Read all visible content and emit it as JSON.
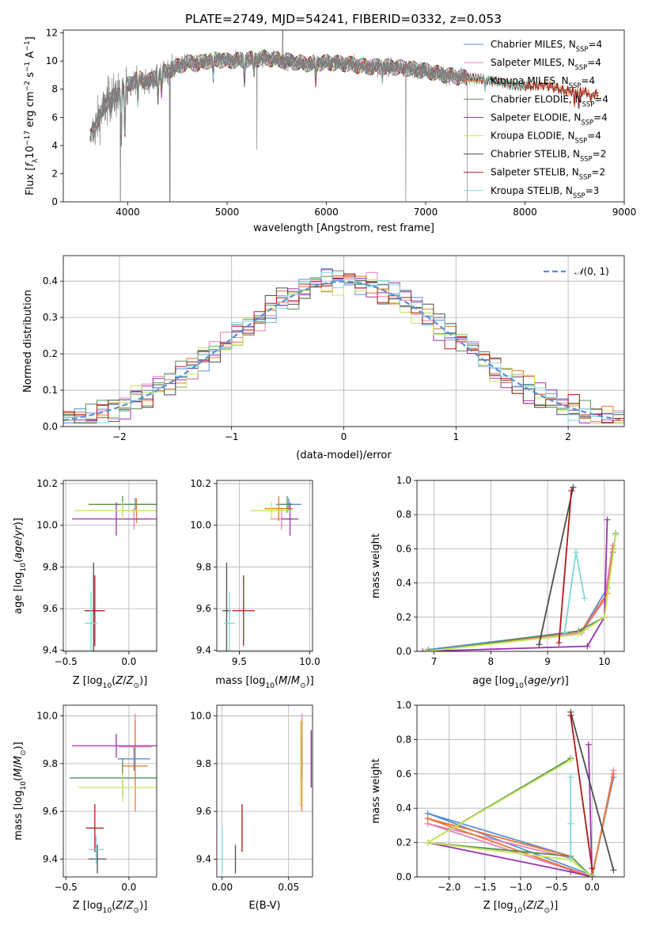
{
  "figure_title": "PLATE=2749, MJD=54241, FIBERID=0332, z=0.053",
  "palette": {
    "Chabrier MILES": "#5b8fd6",
    "Salpeter MILES": "#e97fb8",
    "Kroupa MILES": "#e8772e",
    "Chabrier ELODIE": "#5a8f5a",
    "Salpeter ELODIE": "#9b30b0",
    "Kroupa ELODIE": "#c7e85a",
    "Chabrier STELIB": "#4d4d4d",
    "Salpeter STELIB": "#b01818",
    "Kroupa STELIB": "#7ed8d8",
    "data": "#7f7f7f",
    "normal": "#5b8fd6",
    "grid": "#b0b0b0"
  },
  "chart_data": [
    {
      "id": "spectrum",
      "type": "line",
      "xlabel": "wavelength [Angstrom, rest frame]",
      "ylabel": "Flux [f_λ10^-17 erg cm^-2 s^-1 A^-1]",
      "xlim": [
        3350,
        9000
      ],
      "ylim": [
        0,
        12.2
      ],
      "xticks": [
        4000,
        5000,
        6000,
        7000,
        8000,
        9000
      ],
      "yticks": [
        0,
        2,
        4,
        6,
        8,
        10,
        12
      ],
      "grid": false,
      "legend_position": "top-right",
      "data_range": [
        3640,
        7420
      ],
      "legend": [
        {
          "name": "Chabrier MILES",
          "nssp": "4"
        },
        {
          "name": "Salpeter MILES",
          "nssp": "4"
        },
        {
          "name": "Kroupa MILES",
          "nssp": "4"
        },
        {
          "name": "Chabrier ELODIE",
          "nssp": "4"
        },
        {
          "name": "Salpeter ELODIE",
          "nssp": "4"
        },
        {
          "name": "Kroupa ELODIE",
          "nssp": "4"
        },
        {
          "name": "Chabrier STELIB",
          "nssp": "2"
        },
        {
          "name": "Salpeter STELIB",
          "nssp": "2"
        },
        {
          "name": "Kroupa STELIB",
          "nssp": "3"
        }
      ],
      "continuum": [
        [
          3620,
          4.5
        ],
        [
          3700,
          5.8
        ],
        [
          3800,
          7.2
        ],
        [
          3900,
          7.6
        ],
        [
          4000,
          8.3
        ],
        [
          4100,
          8.8
        ],
        [
          4200,
          8.5
        ],
        [
          4300,
          8.9
        ],
        [
          4400,
          9.3
        ],
        [
          4500,
          9.6
        ],
        [
          4600,
          9.9
        ],
        [
          4700,
          9.8
        ],
        [
          4800,
          10.0
        ],
        [
          4900,
          10.1
        ],
        [
          5000,
          10.0
        ],
        [
          5200,
          10.1
        ],
        [
          5400,
          10.2
        ],
        [
          5600,
          10.0
        ],
        [
          5800,
          9.8
        ],
        [
          6000,
          9.9
        ],
        [
          6200,
          9.8
        ],
        [
          6400,
          9.6
        ],
        [
          6600,
          9.6
        ],
        [
          6800,
          9.5
        ],
        [
          7000,
          9.3
        ],
        [
          7200,
          9.0
        ],
        [
          7400,
          8.8
        ],
        [
          7600,
          8.7
        ],
        [
          7800,
          8.4
        ],
        [
          8000,
          8.2
        ],
        [
          8200,
          8.3
        ],
        [
          8400,
          7.9
        ],
        [
          8600,
          7.8
        ],
        [
          8740,
          7.6
        ]
      ],
      "absorption_lines": [
        [
          3934,
          4.2
        ],
        [
          3969,
          5.0
        ],
        [
          4101,
          7.0
        ],
        [
          4304,
          7.5
        ],
        [
          4340,
          7.8
        ],
        [
          4861,
          8.8
        ],
        [
          5175,
          8.7
        ],
        [
          5270,
          9.2
        ],
        [
          5892,
          8.6
        ],
        [
          6563,
          8.9
        ],
        [
          7600,
          8.0
        ],
        [
          8498,
          6.8
        ],
        [
          8542,
          6.5
        ],
        [
          8662,
          6.8
        ]
      ],
      "glitches": [
        [
          3925,
          0
        ],
        [
          4420,
          0
        ],
        [
          4425,
          0
        ],
        [
          5300,
          3.7
        ],
        [
          6800,
          0
        ],
        [
          7420,
          0
        ]
      ],
      "model_ends": [
        [
          7420,
          7600
        ],
        [
          7420,
          7600
        ],
        [
          7420,
          8740
        ],
        [
          7420,
          8060
        ],
        [
          7420,
          7600
        ],
        [
          7420,
          7600
        ],
        [
          7420,
          8740
        ],
        [
          7420,
          8740
        ],
        [
          7420,
          8000
        ]
      ]
    },
    {
      "id": "residuals",
      "type": "step",
      "xlabel": "(data-model)/error",
      "ylabel": "Normed distribution",
      "xlim": [
        -2.5,
        2.5
      ],
      "ylim": [
        0,
        0.47
      ],
      "xticks": [
        -2,
        -1,
        0,
        1,
        2
      ],
      "yticks": [
        0.0,
        0.1,
        0.2,
        0.3,
        0.4
      ],
      "grid": true,
      "legend_position": "top-right",
      "legend_label": "N(0,1)",
      "bin_width": 0.1,
      "bin_start": -2.5,
      "gaussian": {
        "mean": 0,
        "sigma": 1
      }
    },
    {
      "id": "Z-age",
      "type": "errorbar",
      "xlabel": "Z [log10(Z/Z⊙)]",
      "ylabel": "age [log10(age/yr)]",
      "xlim": [
        -0.52,
        0.22
      ],
      "ylim": [
        9.395,
        10.215
      ],
      "xticks": [
        -0.5,
        0.0
      ],
      "yticks": [
        9.4,
        9.6,
        9.8,
        10.0,
        10.2
      ],
      "grid": true,
      "points": [
        {
          "series": "Chabrier MILES",
          "x": 0.05,
          "xe": 0.15,
          "y": 10.1,
          "ye": 0.03
        },
        {
          "series": "Salpeter MILES",
          "x": 0.04,
          "xe": 0.12,
          "y": 10.03,
          "ye": 0.05
        },
        {
          "series": "Kroupa MILES",
          "x": 0.06,
          "xe": 0.09,
          "y": 10.07,
          "ye": 0.06
        },
        {
          "series": "Chabrier ELODIE",
          "x": -0.05,
          "xe": 0.27,
          "y": 10.1,
          "ye": 0.04
        },
        {
          "series": "Salpeter ELODIE",
          "x": -0.1,
          "xe": 0.35,
          "y": 10.03,
          "ye": 0.08
        },
        {
          "series": "Kroupa ELODIE",
          "x": -0.05,
          "xe": 0.38,
          "y": 10.07,
          "ye": 0.04
        },
        {
          "series": "Chabrier STELIB",
          "x": -0.28,
          "xe": 0.07,
          "y": 9.59,
          "ye": 0.23
        },
        {
          "series": "Salpeter STELIB",
          "x": -0.27,
          "xe": 0.08,
          "y": 9.59,
          "ye": 0.17
        },
        {
          "series": "Kroupa STELIB",
          "x": -0.3,
          "xe": 0.05,
          "y": 9.53,
          "ye": 0.15
        }
      ]
    },
    {
      "id": "mass-age",
      "type": "errorbar",
      "xlabel": "mass [log10(M/M⊙)]",
      "ylabel": "",
      "xlim": [
        9.34,
        10.02
      ],
      "ylim": [
        9.395,
        10.215
      ],
      "xticks": [
        9.5,
        10.0
      ],
      "yticks": [
        9.4,
        9.6,
        9.8,
        10.0,
        10.2
      ],
      "grid": true,
      "points": [
        {
          "series": "Chabrier MILES",
          "x": 9.85,
          "xe": 0.09,
          "y": 10.1,
          "ye": 0.03
        },
        {
          "series": "Salpeter MILES",
          "x": 9.8,
          "xe": 0.08,
          "y": 10.03,
          "ye": 0.05
        },
        {
          "series": "Kroupa MILES",
          "x": 9.78,
          "xe": 0.1,
          "y": 10.08,
          "ye": 0.06
        },
        {
          "series": "Chabrier ELODIE",
          "x": 9.84,
          "xe": 0.05,
          "y": 10.1,
          "ye": 0.04
        },
        {
          "series": "Salpeter ELODIE",
          "x": 9.86,
          "xe": 0.06,
          "y": 10.03,
          "ye": 0.08
        },
        {
          "series": "Kroupa ELODIE",
          "x": 9.73,
          "xe": 0.15,
          "y": 10.07,
          "ye": 0.04
        },
        {
          "series": "Chabrier STELIB",
          "x": 9.41,
          "xe": 0.03,
          "y": 9.59,
          "ye": 0.23
        },
        {
          "series": "Salpeter STELIB",
          "x": 9.53,
          "xe": 0.08,
          "y": 9.59,
          "ye": 0.17
        },
        {
          "series": "Kroupa STELIB",
          "x": 9.43,
          "xe": 0.04,
          "y": 9.53,
          "ye": 0.15
        }
      ]
    },
    {
      "id": "age-weight",
      "type": "line",
      "xlabel": "age [log10(age/yr)]",
      "ylabel": "mass weight",
      "xlim": [
        6.7,
        10.35
      ],
      "ylim": [
        0,
        1.0
      ],
      "xticks": [
        7,
        8,
        9,
        10
      ],
      "yticks": [
        0.0,
        0.2,
        0.4,
        0.6,
        0.8,
        1.0
      ],
      "grid": true,
      "series": [
        {
          "name": "Chabrier MILES",
          "x": [
            6.9,
            9.6,
            10.05,
            10.15
          ],
          "y": [
            0.01,
            0.12,
            0.37,
            0.58
          ]
        },
        {
          "name": "Salpeter MILES",
          "x": [
            6.9,
            9.6,
            10.0,
            10.15
          ],
          "y": [
            0.0,
            0.11,
            0.3,
            0.62
          ]
        },
        {
          "name": "Kroupa MILES",
          "x": [
            6.9,
            9.6,
            10.05,
            10.15
          ],
          "y": [
            0.0,
            0.12,
            0.34,
            0.6
          ]
        },
        {
          "name": "Chabrier ELODIE",
          "x": [
            6.85,
            9.55,
            10.0,
            10.2
          ],
          "y": [
            0.0,
            0.12,
            0.2,
            0.69
          ]
        },
        {
          "name": "Salpeter ELODIE",
          "x": [
            6.8,
            9.7,
            10.0,
            10.05
          ],
          "y": [
            0.0,
            0.03,
            0.2,
            0.77
          ]
        },
        {
          "name": "Kroupa ELODIE",
          "x": [
            6.85,
            9.55,
            10.0,
            10.2
          ],
          "y": [
            0.0,
            0.1,
            0.2,
            0.68
          ]
        },
        {
          "name": "Chabrier STELIB",
          "x": [
            8.85,
            9.45
          ],
          "y": [
            0.04,
            0.96
          ]
        },
        {
          "name": "Salpeter STELIB",
          "x": [
            9.2,
            9.42
          ],
          "y": [
            0.05,
            0.94
          ]
        },
        {
          "name": "Kroupa STELIB",
          "x": [
            9.3,
            9.5,
            9.65
          ],
          "y": [
            0.11,
            0.58,
            0.31
          ]
        }
      ]
    },
    {
      "id": "Z-mass",
      "type": "errorbar",
      "xlabel": "Z [log10(Z/Z⊙)]",
      "ylabel": "mass [log10(M/M⊙)]",
      "xlim": [
        -0.52,
        0.22
      ],
      "ylim": [
        9.325,
        10.045
      ],
      "xticks": [
        -0.5,
        0.0
      ],
      "yticks": [
        9.4,
        9.6,
        9.8,
        10.0
      ],
      "grid": true,
      "points": [
        {
          "series": "Chabrier MILES",
          "x": 0.04,
          "xe": 0.13,
          "y": 9.82,
          "ye": 0.05
        },
        {
          "series": "Salpeter MILES",
          "x": 0.05,
          "xe": 0.13,
          "y": 9.87,
          "ye": 0.14
        },
        {
          "series": "Kroupa MILES",
          "x": 0.05,
          "xe": 0.1,
          "y": 9.79,
          "ye": 0.19
        },
        {
          "series": "Chabrier ELODIE",
          "x": -0.05,
          "xe": 0.42,
          "y": 9.74,
          "ye": 0.08
        },
        {
          "series": "Salpeter ELODIE",
          "x": -0.1,
          "xe": 0.35,
          "y": 9.875,
          "ye": 0.05
        },
        {
          "series": "Kroupa ELODIE",
          "x": -0.05,
          "xe": 0.35,
          "y": 9.7,
          "ye": 0.06
        },
        {
          "series": "Chabrier STELIB",
          "x": -0.25,
          "xe": 0.07,
          "y": 9.4,
          "ye": 0.06
        },
        {
          "series": "Salpeter STELIB",
          "x": -0.27,
          "xe": 0.07,
          "y": 9.53,
          "ye": 0.1
        },
        {
          "series": "Kroupa STELIB",
          "x": -0.26,
          "xe": 0.06,
          "y": 9.44,
          "ye": 0.06
        }
      ]
    },
    {
      "id": "ebv-mass",
      "type": "errorbar",
      "xlabel": "E(B-V)",
      "ylabel": "",
      "xlim": [
        -0.004,
        0.068
      ],
      "ylim": [
        9.325,
        10.045
      ],
      "xticks": [
        0.0,
        0.05
      ],
      "yticks": [
        9.4,
        9.6,
        9.8,
        10.0
      ],
      "grid": true,
      "points": [
        {
          "series": "Chabrier MILES",
          "x": 0.06,
          "xe": 0,
          "y": 9.82,
          "ye": 0.08
        },
        {
          "series": "Salpeter MILES",
          "x": 0.06,
          "xe": 0,
          "y": 9.87,
          "ye": 0.14
        },
        {
          "series": "Kroupa MILES",
          "x": 0.06,
          "xe": 0,
          "y": 9.79,
          "ye": 0.19
        },
        {
          "series": "Chabrier ELODIE",
          "x": 0.067,
          "xe": 0,
          "y": 9.82,
          "ye": 0.12
        },
        {
          "series": "Salpeter ELODIE",
          "x": 0.067,
          "xe": 0,
          "y": 9.82,
          "ye": 0.12
        },
        {
          "series": "Kroupa ELODIE",
          "x": 0.059,
          "xe": 0,
          "y": 9.8,
          "ye": 0.18
        },
        {
          "series": "Chabrier STELIB",
          "x": 0.01,
          "xe": 0,
          "y": 9.4,
          "ye": 0.06
        },
        {
          "series": "Salpeter STELIB",
          "x": 0.015,
          "xe": 0,
          "y": 9.53,
          "ye": 0.1
        },
        {
          "series": "Kroupa STELIB",
          "x": 0.0,
          "xe": 0,
          "y": 9.44,
          "ye": 0.1
        }
      ]
    },
    {
      "id": "Z-weight",
      "type": "line",
      "xlabel": "Z [log10(Z/Z⊙)]",
      "ylabel": "mass weight",
      "xlim": [
        -2.45,
        0.45
      ],
      "ylim": [
        0,
        1.0
      ],
      "xticks": [
        -2.0,
        -1.5,
        -1.0,
        -0.5,
        0.0
      ],
      "yticks": [
        0.0,
        0.2,
        0.4,
        0.6,
        0.8,
        1.0
      ],
      "grid": true,
      "series": [
        {
          "name": "Chabrier MILES",
          "x": [
            -0.3,
            -2.3,
            0.0,
            0.3
          ],
          "y": [
            0.12,
            0.37,
            0.01,
            0.58
          ]
        },
        {
          "name": "Salpeter MILES",
          "x": [
            -0.3,
            -2.3,
            0.0,
            0.3
          ],
          "y": [
            0.11,
            0.31,
            0.0,
            0.62
          ]
        },
        {
          "name": "Kroupa MILES",
          "x": [
            -0.3,
            -2.3,
            0.0,
            0.3
          ],
          "y": [
            0.12,
            0.34,
            0.0,
            0.6
          ]
        },
        {
          "name": "Chabrier ELODIE",
          "x": [
            0.0,
            -0.3,
            -2.3,
            -0.3
          ],
          "y": [
            0.0,
            0.12,
            0.2,
            0.69
          ]
        },
        {
          "name": "Salpeter ELODIE",
          "x": [
            -2.3,
            -0.3,
            0.0,
            -0.05
          ],
          "y": [
            0.2,
            0.03,
            0.0,
            0.77
          ]
        },
        {
          "name": "Kroupa ELODIE",
          "x": [
            0.0,
            -0.3,
            -2.3,
            -0.3
          ],
          "y": [
            0.0,
            0.1,
            0.2,
            0.68
          ]
        },
        {
          "name": "Chabrier STELIB",
          "x": [
            -0.3,
            0.3
          ],
          "y": [
            0.96,
            0.04
          ]
        },
        {
          "name": "Salpeter STELIB",
          "x": [
            -0.3,
            0.0
          ],
          "y": [
            0.94,
            0.05
          ]
        },
        {
          "name": "Kroupa STELIB",
          "x": [
            -0.3,
            -0.3,
            -0.3
          ],
          "y": [
            0.11,
            0.58,
            0.31
          ]
        }
      ]
    }
  ]
}
